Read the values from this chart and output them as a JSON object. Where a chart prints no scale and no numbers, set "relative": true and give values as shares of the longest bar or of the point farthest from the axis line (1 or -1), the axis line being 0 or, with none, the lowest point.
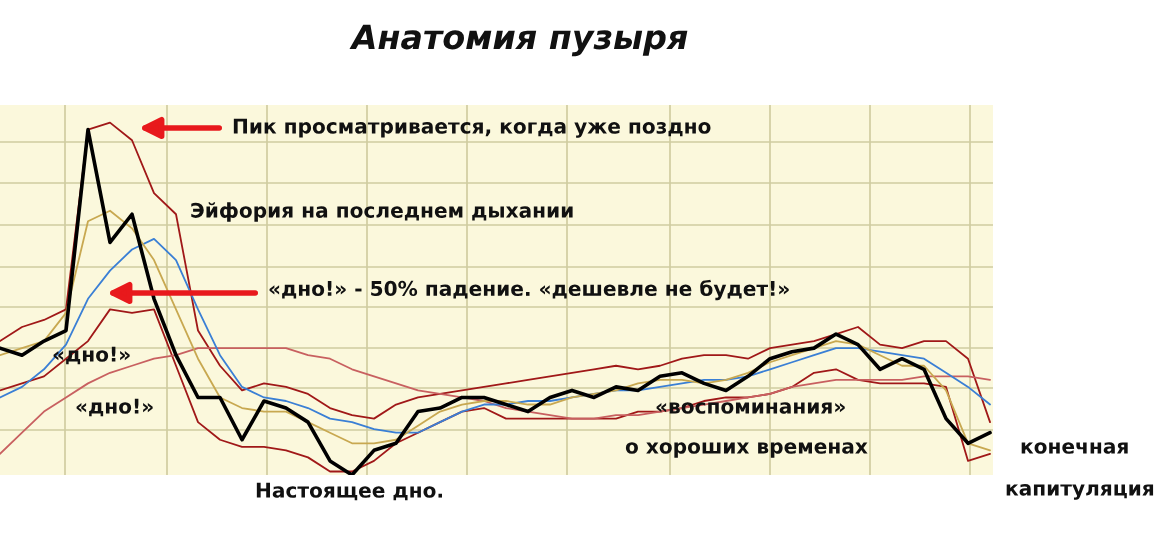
{
  "chart_data": {
    "type": "line",
    "title": "Анатомия пузыря",
    "relative": true,
    "grid": true,
    "tick_labels": false,
    "categories": [
      null,
      null,
      null,
      null,
      null,
      null,
      null,
      null,
      null,
      null,
      null,
      null,
      null,
      null,
      null,
      null,
      null,
      null,
      null,
      null,
      null,
      null,
      null,
      null,
      null,
      null,
      null,
      null,
      null,
      null,
      null,
      null,
      null,
      null,
      null,
      null,
      null,
      null,
      null,
      null,
      null,
      null,
      null,
      null,
      null,
      null
    ],
    "series": [
      {
        "color": "#a01818",
        "values": [
          0.24,
          0.26,
          0.28,
          0.33,
          0.38,
          0.47,
          0.46,
          0.47,
          0.31,
          0.15,
          0.1,
          0.08,
          0.08,
          0.07,
          0.05,
          0.01,
          0.01,
          0.04,
          0.09,
          0.12,
          0.15,
          0.18,
          0.19,
          0.16,
          0.16,
          0.16,
          0.16,
          0.16,
          0.16,
          0.18,
          0.18,
          0.19,
          0.21,
          0.22,
          0.22,
          0.23,
          0.25,
          0.29,
          0.3,
          0.27,
          0.26,
          0.26,
          0.26,
          0.25,
          0.04,
          0.06
        ]
      },
      {
        "color": "#a01818",
        "values": [
          0.38,
          0.42,
          0.44,
          0.47,
          0.98,
          1.0,
          0.95,
          0.8,
          0.74,
          0.41,
          0.31,
          0.24,
          0.26,
          0.25,
          0.23,
          0.19,
          0.17,
          0.16,
          0.2,
          0.22,
          0.23,
          0.24,
          0.25,
          0.26,
          0.27,
          0.28,
          0.29,
          0.3,
          0.31,
          0.3,
          0.31,
          0.33,
          0.34,
          0.34,
          0.33,
          0.36,
          0.37,
          0.38,
          0.4,
          0.42,
          0.37,
          0.36,
          0.38,
          0.38,
          0.33,
          0.15
        ]
      },
      {
        "color": "#c86060",
        "values": [
          0.06,
          0.12,
          0.18,
          0.22,
          0.26,
          0.29,
          0.31,
          0.33,
          0.34,
          0.36,
          0.36,
          0.36,
          0.36,
          0.36,
          0.34,
          0.33,
          0.3,
          0.28,
          0.26,
          0.24,
          0.23,
          0.22,
          0.21,
          0.19,
          0.18,
          0.17,
          0.16,
          0.16,
          0.17,
          0.17,
          0.18,
          0.19,
          0.2,
          0.21,
          0.22,
          0.23,
          0.25,
          0.26,
          0.27,
          0.27,
          0.27,
          0.27,
          0.28,
          0.28,
          0.28,
          0.27
        ]
      },
      {
        "color": "#3a7fd5",
        "values": [
          0.22,
          0.25,
          0.3,
          0.37,
          0.5,
          0.58,
          0.64,
          0.67,
          0.61,
          0.47,
          0.34,
          0.25,
          0.22,
          0.21,
          0.19,
          0.16,
          0.15,
          0.13,
          0.12,
          0.12,
          0.15,
          0.18,
          0.2,
          0.2,
          0.21,
          0.21,
          0.22,
          0.23,
          0.24,
          0.24,
          0.25,
          0.26,
          0.27,
          0.27,
          0.28,
          0.3,
          0.32,
          0.34,
          0.36,
          0.36,
          0.35,
          0.34,
          0.33,
          0.29,
          0.25,
          0.2
        ]
      },
      {
        "color": "#c8a850",
        "values": [
          0.34,
          0.36,
          0.38,
          0.46,
          0.72,
          0.75,
          0.7,
          0.61,
          0.47,
          0.33,
          0.22,
          0.19,
          0.18,
          0.18,
          0.15,
          0.12,
          0.09,
          0.09,
          0.1,
          0.14,
          0.18,
          0.2,
          0.21,
          0.21,
          0.2,
          0.2,
          0.22,
          0.23,
          0.24,
          0.26,
          0.27,
          0.27,
          0.26,
          0.27,
          0.29,
          0.32,
          0.34,
          0.36,
          0.38,
          0.37,
          0.34,
          0.31,
          0.31,
          0.24,
          0.09,
          0.07
        ]
      },
      {
        "color": "#000000",
        "values": [
          0.36,
          0.34,
          0.38,
          0.41,
          0.98,
          0.66,
          0.74,
          0.5,
          0.34,
          0.22,
          0.22,
          0.1,
          0.21,
          0.19,
          0.15,
          0.04,
          0.0,
          0.07,
          0.09,
          0.18,
          0.19,
          0.22,
          0.22,
          0.2,
          0.18,
          0.22,
          0.24,
          0.22,
          0.25,
          0.24,
          0.28,
          0.29,
          0.26,
          0.24,
          0.28,
          0.33,
          0.35,
          0.36,
          0.4,
          0.37,
          0.3,
          0.33,
          0.3,
          0.16,
          0.09,
          0.12
        ]
      }
    ],
    "annotations": [
      "Пик просматривается, когда уже поздно",
      "Эйфория на последнем дыхании",
      "«дно!» - 50% падение. «дешевле не будет!»",
      "«дно!»",
      "«дно!»",
      "Настоящее дно.",
      "«воспоминания»",
      "о хороших временах",
      "конечная",
      "капитуляция"
    ]
  }
}
